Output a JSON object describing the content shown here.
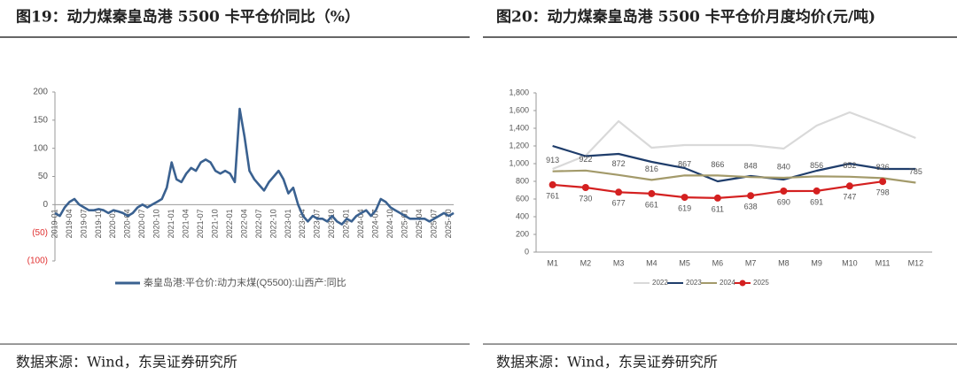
{
  "chart_data": [
    {
      "type": "line",
      "title": "图19：动力煤秦皇岛港 5500 卡平仓价同比（%）",
      "source": "数据来源：Wind，东吴证券研究所",
      "categories": [
        "2019-01",
        null,
        null,
        "2019-04",
        null,
        null,
        "2019-07",
        null,
        null,
        "2019-10",
        null,
        null,
        "2020-01",
        null,
        null,
        "2020-04",
        null,
        null,
        "2020-07",
        null,
        null,
        "2020-10",
        null,
        null,
        "2021-01",
        null,
        null,
        "2021-04",
        null,
        null,
        "2021-07",
        null,
        null,
        "2021-10",
        null,
        null,
        "2022-01",
        null,
        null,
        "2022-04",
        null,
        null,
        "2022-07",
        null,
        null,
        "2022-10",
        null,
        null,
        "2023-01",
        null,
        null,
        "2023-04",
        null,
        null,
        "2023-07",
        null,
        null,
        "2023-10",
        null,
        null,
        "2024-01",
        null,
        null,
        "2024-04",
        null,
        null,
        "2024-07",
        null,
        null,
        "2024-10",
        null,
        null,
        "2025-01",
        null,
        null,
        "2025-04",
        null,
        null,
        "2025-07",
        null,
        null,
        "2025-10",
        null
      ],
      "series": [
        {
          "name": "秦皇岛港:平仓价:动力末煤(Q5500):山西产:同比",
          "color": "#3a6190",
          "values": [
            -15,
            -20,
            -5,
            5,
            10,
            0,
            -5,
            -10,
            -10,
            -8,
            -10,
            -15,
            -10,
            -12,
            -15,
            -20,
            -15,
            -5,
            0,
            -5,
            0,
            5,
            10,
            30,
            75,
            45,
            40,
            55,
            65,
            60,
            75,
            80,
            75,
            60,
            55,
            60,
            55,
            40,
            170,
            120,
            60,
            45,
            35,
            25,
            40,
            50,
            60,
            45,
            20,
            30,
            0,
            -20,
            -30,
            -20,
            -25,
            -25,
            -30,
            -20,
            -30,
            -35,
            -25,
            -30,
            -20,
            -15,
            -10,
            -20,
            -10,
            10,
            5,
            -5,
            -10,
            -15,
            -20,
            -25,
            -25,
            -25,
            -25,
            -30,
            -25,
            -20,
            -15,
            -20,
            -15
          ]
        }
      ],
      "ylim": [
        -100,
        200
      ],
      "yticks": [
        200,
        150,
        100,
        50,
        0,
        {
          "value": -50,
          "label": "(50)"
        },
        {
          "value": -100,
          "label": "(100)"
        }
      ],
      "negative_tick_color": "#e03030",
      "grid": false
    },
    {
      "type": "line",
      "title": "图20：动力煤秦皇岛港 5500 卡平仓价月度均价(元/吨)",
      "source": "数据来源：Wind，东吴证券研究所",
      "categories": [
        "M1",
        "M2",
        "M3",
        "M4",
        "M5",
        "M6",
        "M7",
        "M8",
        "M9",
        "M10",
        "M11",
        "M12"
      ],
      "series": [
        {
          "name": "2022",
          "color": "#d9d9d9",
          "values": [
            940,
            1090,
            1480,
            1180,
            1210,
            1210,
            1210,
            1170,
            1430,
            1580,
            1440,
            1290
          ]
        },
        {
          "name": "2023",
          "color": "#1f3d6b",
          "values": [
            1200,
            1085,
            1110,
            1020,
            950,
            800,
            860,
            820,
            920,
            1000,
            940,
            940
          ]
        },
        {
          "name": "2024",
          "color": "#a39a6a",
          "data_labels": true,
          "values": [
            913,
            922,
            872,
            816,
            867,
            866,
            848,
            840,
            856,
            852,
            836,
            785
          ]
        },
        {
          "name": "2025",
          "color": "#d42020",
          "data_labels": true,
          "marker": "circle",
          "values": [
            761,
            730,
            677,
            661,
            619,
            611,
            638,
            690,
            691,
            747,
            798,
            null
          ]
        }
      ],
      "ylim": [
        0,
        1800
      ],
      "yticks": [
        0,
        200,
        400,
        600,
        800,
        {
          "value": 1000,
          "label": "1,000"
        },
        {
          "value": 1200,
          "label": "1,200"
        },
        {
          "value": 1400,
          "label": "1,400"
        },
        {
          "value": 1600,
          "label": "1,600"
        },
        {
          "value": 1800,
          "label": "1,800"
        }
      ],
      "grid": false
    }
  ]
}
